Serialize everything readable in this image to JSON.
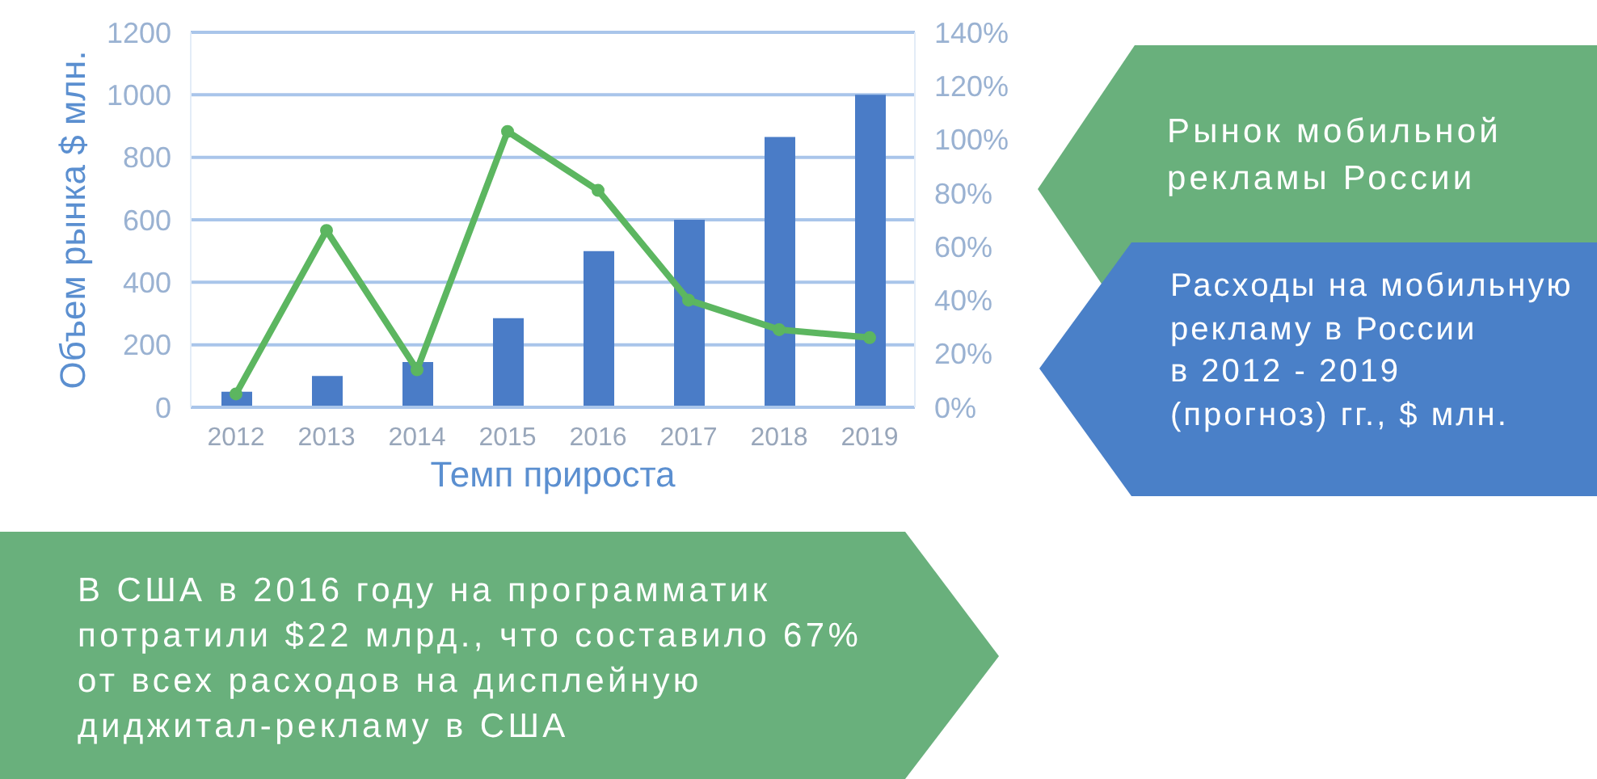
{
  "chart_data": {
    "type": "bar",
    "categories": [
      "2012",
      "2013",
      "2014",
      "2015",
      "2016",
      "2017",
      "2018",
      "2019"
    ],
    "xlabel": "Темп прироста",
    "ylabel": "Объем рынка $ млн.",
    "series": [
      {
        "color": "#4a7cc7",
        "values": [
          50,
          100,
          145,
          285,
          500,
          600,
          865,
          1000
        ]
      },
      {
        "type": "line",
        "axis": "y2",
        "color": "#5cb660",
        "values": [
          5,
          66,
          14,
          103,
          81,
          40,
          29,
          26
        ]
      }
    ],
    "ylim": [
      0,
      1200
    ],
    "yticks": [
      0,
      200,
      400,
      600,
      800,
      1000,
      1200
    ],
    "y2lim": [
      0,
      140
    ],
    "y2ticks": [
      {
        "value": 0,
        "label": "0%"
      },
      {
        "value": 20,
        "label": "20%"
      },
      {
        "value": 40,
        "label": "40%"
      },
      {
        "value": 60,
        "label": "60%"
      },
      {
        "value": 80,
        "label": "80%"
      },
      {
        "value": 100,
        "label": "100%"
      },
      {
        "value": 120,
        "label": "120%"
      },
      {
        "value": 140,
        "label": "140%"
      }
    ],
    "grid": "y",
    "marker": "circle",
    "annotations": [
      "Рынок мобильной\nрекламы России",
      "Расходы на мобильную\nрекламу в России\nв 2012 - 2019\n(прогноз) гг., $ млн.",
      "В США в 2016 году на программатик\nпотратили $22 млрд., что составило 67%\nот всех расходов на дисплейную\nдиджитал-рекламу в США"
    ]
  }
}
